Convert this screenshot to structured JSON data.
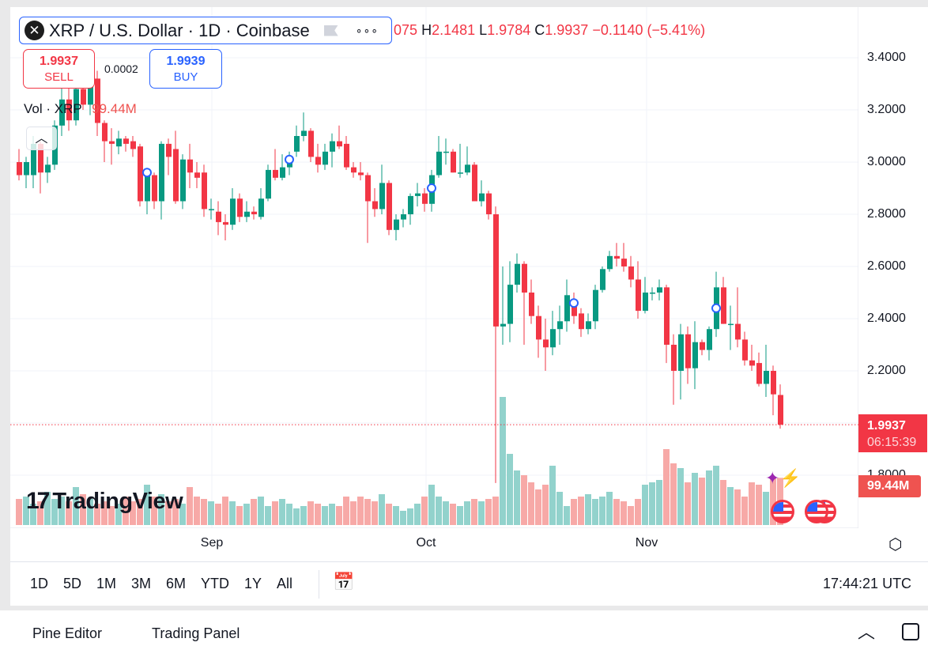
{
  "header": {
    "symbol": "XRP / U.S. Dollar · 1D · Coinbase",
    "logo_letter": "✕",
    "more": "∘∘∘"
  },
  "ohlc": {
    "open_partial": "075",
    "h_label": "H",
    "high": "2.1481",
    "l_label": "L",
    "low": "1.9784",
    "c_label": "C",
    "close": "1.9937",
    "change": "−0.1140 (−5.41%)"
  },
  "trade": {
    "sell_price": "1.9937",
    "sell_label": "SELL",
    "spread": "0.0002",
    "buy_price": "1.9939",
    "buy_label": "BUY"
  },
  "volume_legend": {
    "label": "Vol · XRP",
    "value": "99.44M"
  },
  "price_axis": {
    "ticks": [
      "3.4000",
      "3.2000",
      "3.0000",
      "2.8000",
      "2.6000",
      "2.4000",
      "2.2000",
      "1.8000"
    ]
  },
  "price_tag": {
    "price": "1.9937",
    "countdown": "06:15:39"
  },
  "volume_tag": "99.44M",
  "brand": {
    "mark": "17",
    "name": "TradingView"
  },
  "time_axis": {
    "months": [
      "Sep",
      "Oct",
      "Nov"
    ]
  },
  "ranges": [
    "1D",
    "5D",
    "1M",
    "3M",
    "6M",
    "YTD",
    "1Y",
    "All"
  ],
  "clock": "17:44:21 UTC",
  "panel_tabs": [
    "Pine Editor",
    "Trading Panel"
  ],
  "colors": {
    "up": "#089981",
    "down": "#f23645",
    "up_vol": "#92d2cc",
    "down_vol": "#f7a9a7",
    "accent": "#2962ff"
  },
  "chart_data": {
    "type": "candlestick",
    "ylim": [
      1.8,
      3.4
    ],
    "candles": [
      [
        3.0,
        3.05,
        2.93,
        2.95
      ],
      [
        2.95,
        3.02,
        2.9,
        3.0
      ],
      [
        2.95,
        3.1,
        2.9,
        3.07
      ],
      [
        3.07,
        3.08,
        2.88,
        2.96
      ],
      [
        2.96,
        3.02,
        2.92,
        2.99
      ],
      [
        2.99,
        3.16,
        2.97,
        3.14
      ],
      [
        3.14,
        3.3,
        3.1,
        3.24
      ],
      [
        3.24,
        3.3,
        3.12,
        3.16
      ],
      [
        3.16,
        3.32,
        3.14,
        3.28
      ],
      [
        3.28,
        3.34,
        3.2,
        3.22
      ],
      [
        3.22,
        3.38,
        3.18,
        3.32
      ],
      [
        3.32,
        3.35,
        3.1,
        3.15
      ],
      [
        3.15,
        3.16,
        3.0,
        3.08
      ],
      [
        3.08,
        3.13,
        2.99,
        3.07
      ],
      [
        3.06,
        3.12,
        3.03,
        3.09
      ],
      [
        3.09,
        3.1,
        3.04,
        3.07
      ],
      [
        3.08,
        3.1,
        3.02,
        3.05
      ],
      [
        3.06,
        3.07,
        2.83,
        2.85
      ],
      [
        2.85,
        2.97,
        2.8,
        2.95
      ],
      [
        2.95,
        2.96,
        2.82,
        2.85
      ],
      [
        2.85,
        3.08,
        2.78,
        3.07
      ],
      [
        3.07,
        3.09,
        2.95,
        3.02
      ],
      [
        3.05,
        3.12,
        2.84,
        2.85
      ],
      [
        2.85,
        3.03,
        2.82,
        3.01
      ],
      [
        3.01,
        3.07,
        2.9,
        2.96
      ],
      [
        2.96,
        3.0,
        2.9,
        2.94
      ],
      [
        2.96,
        2.99,
        2.79,
        2.82
      ],
      [
        2.82,
        2.86,
        2.78,
        2.82
      ],
      [
        2.81,
        2.85,
        2.72,
        2.77
      ],
      [
        2.77,
        2.8,
        2.7,
        2.76
      ],
      [
        2.76,
        2.9,
        2.74,
        2.86
      ],
      [
        2.86,
        2.88,
        2.77,
        2.79
      ],
      [
        2.79,
        2.85,
        2.77,
        2.81
      ],
      [
        2.81,
        2.83,
        2.78,
        2.8
      ],
      [
        2.79,
        2.9,
        2.78,
        2.86
      ],
      [
        2.86,
        2.99,
        2.85,
        2.97
      ],
      [
        2.97,
        3.05,
        2.93,
        2.94
      ],
      [
        2.94,
        3.03,
        2.93,
        2.98
      ],
      [
        2.98,
        3.04,
        2.95,
        3.02
      ],
      [
        3.04,
        3.14,
        3.02,
        3.1
      ],
      [
        3.1,
        3.19,
        3.08,
        3.12
      ],
      [
        3.12,
        3.13,
        3.0,
        3.02
      ],
      [
        3.02,
        3.07,
        2.96,
        2.99
      ],
      [
        2.99,
        3.07,
        2.97,
        3.04
      ],
      [
        3.04,
        3.11,
        2.98,
        3.08
      ],
      [
        3.08,
        3.14,
        3.05,
        3.06
      ],
      [
        3.07,
        3.1,
        2.97,
        2.98
      ],
      [
        2.98,
        3.0,
        2.94,
        2.96
      ],
      [
        2.96,
        3.0,
        2.93,
        2.95
      ],
      [
        2.95,
        2.96,
        2.69,
        2.85
      ],
      [
        2.85,
        2.9,
        2.79,
        2.82
      ],
      [
        2.82,
        2.99,
        2.8,
        2.92
      ],
      [
        2.92,
        2.93,
        2.72,
        2.74
      ],
      [
        2.74,
        2.8,
        2.7,
        2.78
      ],
      [
        2.78,
        2.82,
        2.75,
        2.8
      ],
      [
        2.8,
        2.88,
        2.76,
        2.87
      ],
      [
        2.87,
        2.92,
        2.83,
        2.88
      ],
      [
        2.88,
        2.9,
        2.81,
        2.84
      ],
      [
        2.84,
        2.97,
        2.81,
        2.95
      ],
      [
        2.95,
        3.1,
        2.94,
        3.04
      ],
      [
        3.04,
        3.09,
        2.99,
        3.04
      ],
      [
        3.04,
        3.05,
        2.96,
        2.96
      ],
      [
        2.96,
        3.07,
        2.94,
        2.96
      ],
      [
        2.96,
        3.06,
        2.95,
        2.99
      ],
      [
        2.99,
        3.0,
        2.85,
        2.85
      ],
      [
        2.85,
        2.93,
        2.83,
        2.88
      ],
      [
        2.88,
        2.89,
        2.78,
        2.8
      ],
      [
        2.8,
        2.83,
        1.77,
        2.37
      ],
      [
        2.37,
        2.6,
        2.3,
        2.38
      ],
      [
        2.38,
        2.62,
        2.31,
        2.53
      ],
      [
        2.53,
        2.65,
        2.5,
        2.61
      ],
      [
        2.61,
        2.62,
        2.3,
        2.5
      ],
      [
        2.5,
        2.55,
        2.38,
        2.41
      ],
      [
        2.41,
        2.45,
        2.25,
        2.32
      ],
      [
        2.32,
        2.4,
        2.2,
        2.29
      ],
      [
        2.29,
        2.43,
        2.26,
        2.36
      ],
      [
        2.36,
        2.45,
        2.3,
        2.39
      ],
      [
        2.39,
        2.55,
        2.35,
        2.49
      ],
      [
        2.47,
        2.5,
        2.38,
        2.41
      ],
      [
        2.42,
        2.44,
        2.33,
        2.36
      ],
      [
        2.36,
        2.42,
        2.34,
        2.39
      ],
      [
        2.39,
        2.53,
        2.36,
        2.51
      ],
      [
        2.51,
        2.6,
        2.5,
        2.59
      ],
      [
        2.59,
        2.66,
        2.58,
        2.64
      ],
      [
        2.64,
        2.69,
        2.6,
        2.63
      ],
      [
        2.63,
        2.69,
        2.58,
        2.6
      ],
      [
        2.6,
        2.64,
        2.52,
        2.55
      ],
      [
        2.55,
        2.62,
        2.4,
        2.43
      ],
      [
        2.43,
        2.56,
        2.42,
        2.5
      ],
      [
        2.5,
        2.52,
        2.47,
        2.5
      ],
      [
        2.5,
        2.55,
        2.47,
        2.52
      ],
      [
        2.52,
        2.53,
        2.23,
        2.3
      ],
      [
        2.3,
        2.34,
        2.07,
        2.2
      ],
      [
        2.2,
        2.38,
        2.09,
        2.34
      ],
      [
        2.34,
        2.37,
        2.15,
        2.21
      ],
      [
        2.21,
        2.39,
        2.13,
        2.31
      ],
      [
        2.31,
        2.32,
        2.26,
        2.28
      ],
      [
        2.28,
        2.37,
        2.24,
        2.36
      ],
      [
        2.36,
        2.58,
        2.33,
        2.52
      ],
      [
        2.52,
        2.56,
        2.38,
        2.38
      ],
      [
        2.38,
        2.45,
        2.28,
        2.38
      ],
      [
        2.38,
        2.52,
        2.29,
        2.32
      ],
      [
        2.32,
        2.35,
        2.22,
        2.24
      ],
      [
        2.24,
        2.3,
        2.2,
        2.22
      ],
      [
        2.23,
        2.27,
        2.14,
        2.15
      ],
      [
        2.15,
        2.3,
        2.1,
        2.2
      ],
      [
        2.2,
        2.22,
        2.03,
        2.11
      ],
      [
        2.1075,
        2.1481,
        1.9784,
        1.9937
      ]
    ],
    "volumes_m": [
      55,
      60,
      45,
      50,
      70,
      55,
      60,
      50,
      80,
      65,
      55,
      45,
      50,
      40,
      45,
      60,
      50,
      55,
      85,
      60,
      65,
      50,
      55,
      45,
      80,
      60,
      55,
      50,
      45,
      60,
      50,
      40,
      45,
      55,
      60,
      40,
      50,
      55,
      45,
      35,
      40,
      50,
      45,
      40,
      45,
      40,
      60,
      50,
      60,
      55,
      50,
      65,
      45,
      40,
      30,
      35,
      45,
      60,
      85,
      60,
      50,
      45,
      40,
      50,
      55,
      50,
      55,
      60,
      270,
      150,
      115,
      105,
      90,
      75,
      85,
      125,
      70,
      40,
      55,
      60,
      65,
      55,
      60,
      70,
      55,
      50,
      40,
      55,
      85,
      90,
      95,
      160,
      130,
      120,
      90,
      110,
      100,
      115,
      125,
      95,
      80,
      75,
      60,
      90,
      85,
      70,
      100,
      99.44
    ],
    "events": [
      {
        "index": 18,
        "price": 2.96
      },
      {
        "index": 38,
        "price": 3.01
      },
      {
        "index": 58,
        "price": 2.9
      },
      {
        "index": 78,
        "price": 2.46
      },
      {
        "index": 98,
        "price": 2.44
      }
    ],
    "last_price": 1.9937
  }
}
